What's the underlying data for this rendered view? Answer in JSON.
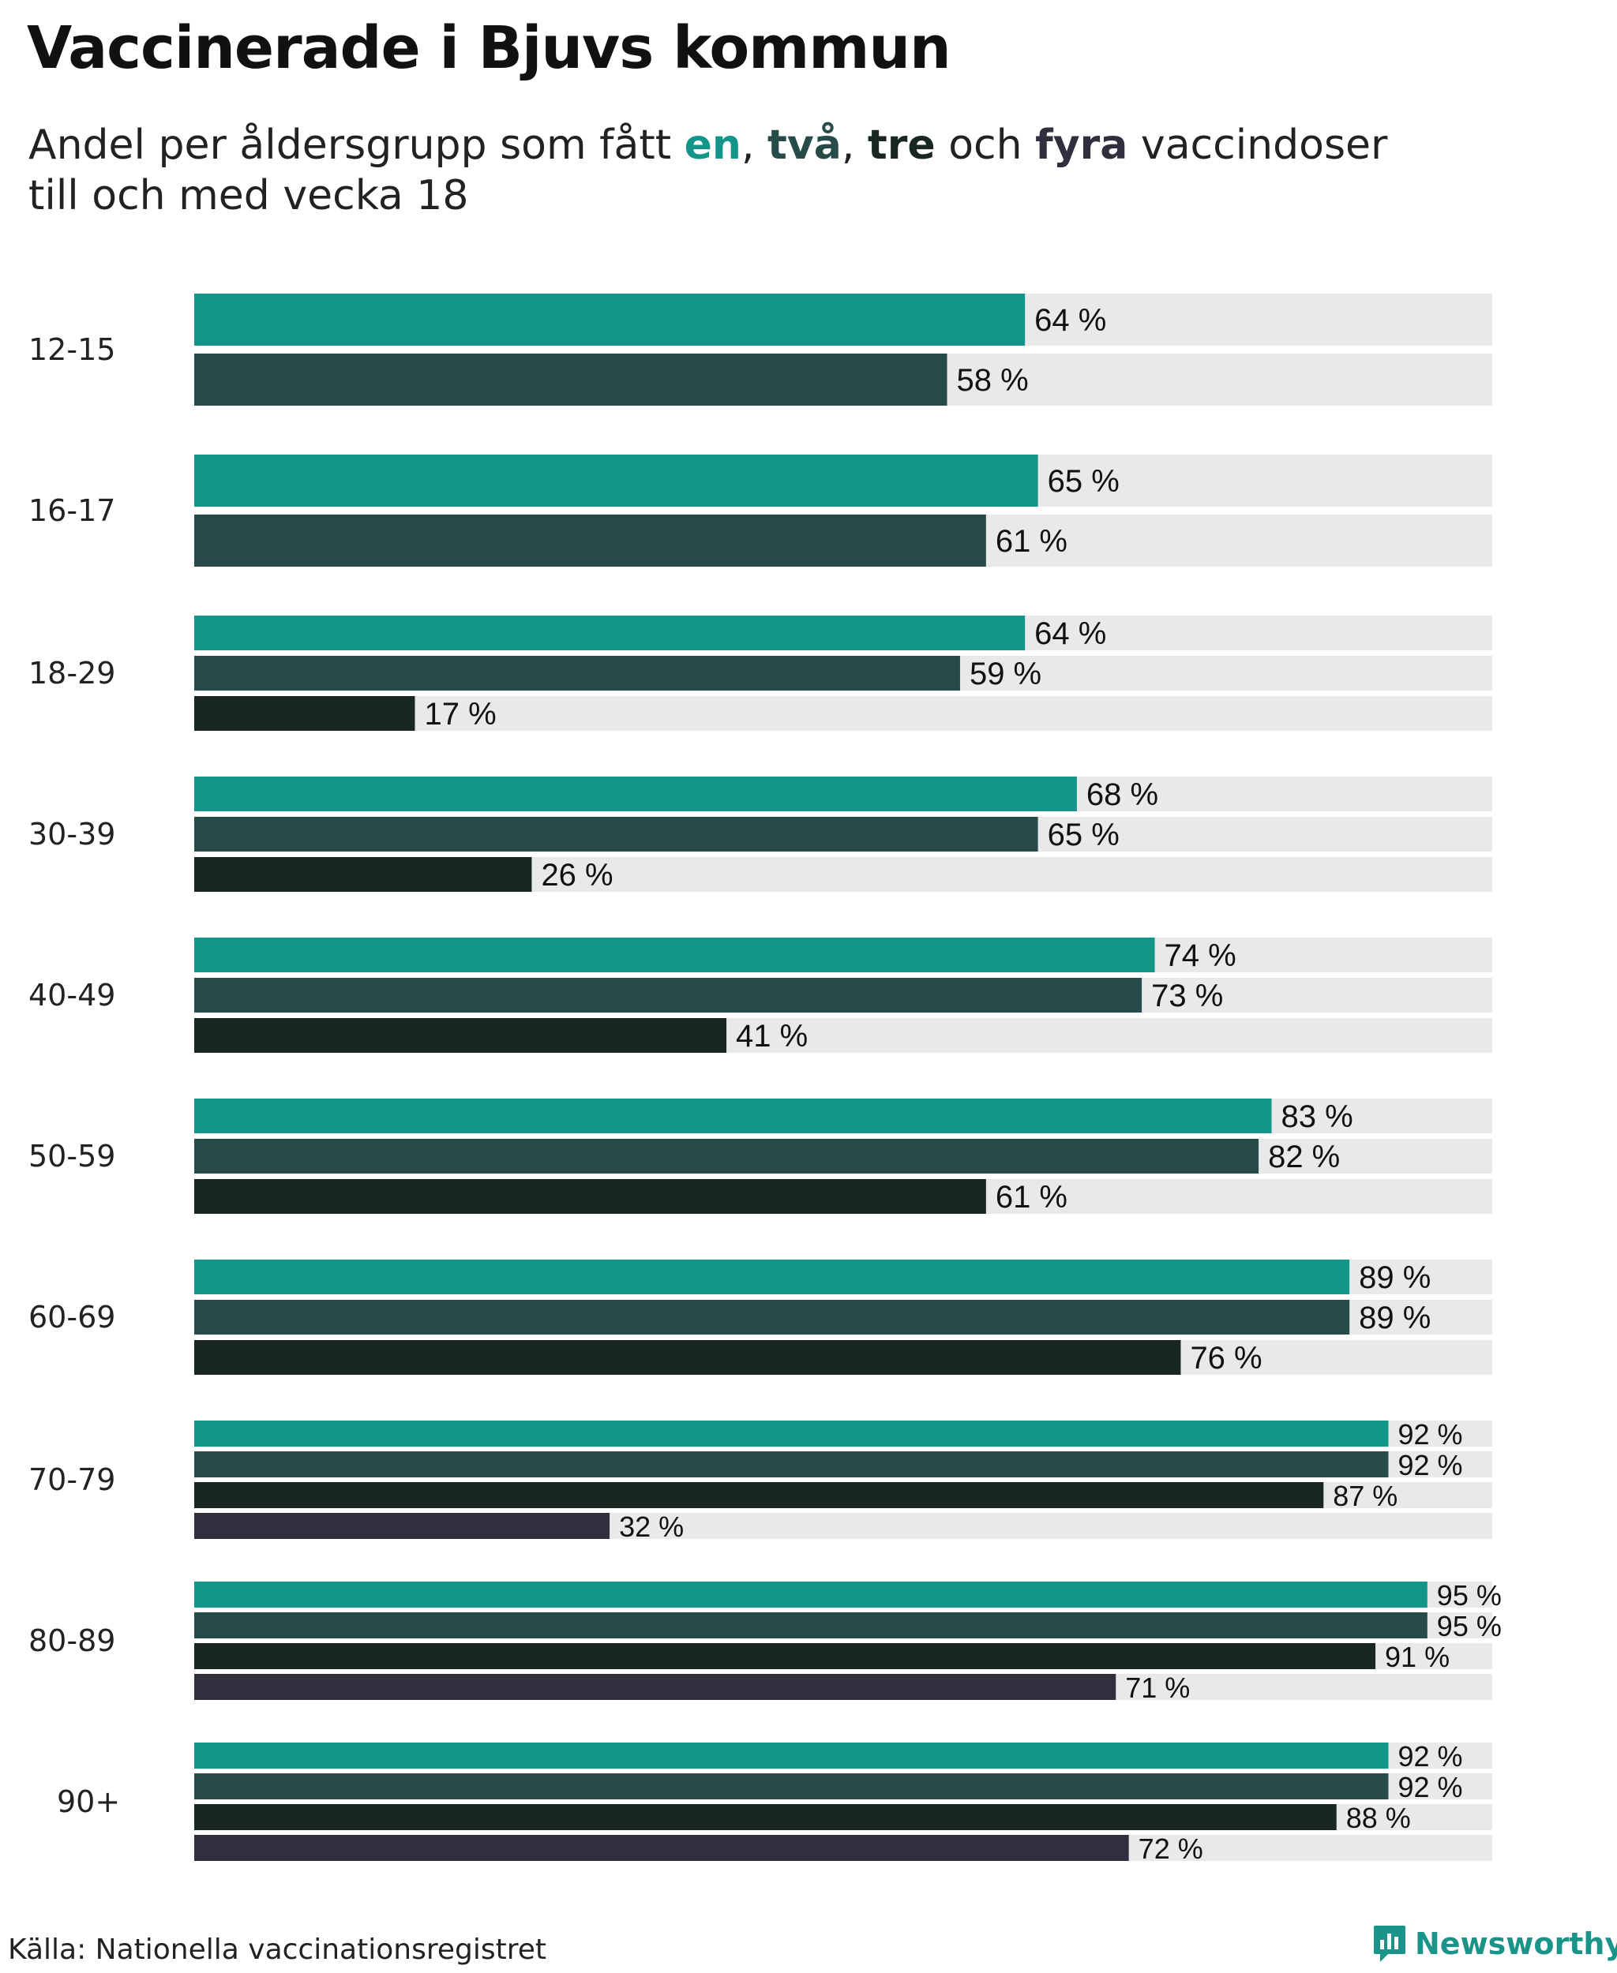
{
  "title": "Vaccinerade i Bjuvs kommun",
  "subtitle": {
    "prefix": "Andel per åldersgrupp som fått ",
    "dose1": "en",
    "sep1": ", ",
    "dose2": "två",
    "sep2": ", ",
    "dose3": "tre",
    "sep3": " och ",
    "dose4": "fyra",
    "suffix": " vaccindoser",
    "line2": "till och med vecka 18"
  },
  "colors": {
    "dose1": "#13958a",
    "dose2": "#264b49",
    "dose3": "#182624",
    "dose4": "#2f2f3d",
    "track": "#e9e9e9"
  },
  "chart_data": {
    "type": "bar",
    "orientation": "horizontal",
    "title": "Vaccinerade i Bjuvs kommun",
    "xlabel": "",
    "ylabel": "",
    "xlim": [
      0,
      100
    ],
    "value_suffix": " %",
    "categories": [
      "12-15",
      "16-17",
      "18-29",
      "30-39",
      "40-49",
      "50-59",
      "60-69",
      "70-79",
      "80-89",
      "90+"
    ],
    "series": [
      {
        "name": "en",
        "values": [
          64,
          65,
          64,
          68,
          74,
          83,
          89,
          92,
          95,
          92
        ]
      },
      {
        "name": "två",
        "values": [
          58,
          61,
          59,
          65,
          73,
          82,
          89,
          92,
          95,
          92
        ]
      },
      {
        "name": "tre",
        "values": [
          null,
          null,
          17,
          26,
          41,
          61,
          76,
          87,
          91,
          88
        ]
      },
      {
        "name": "fyra",
        "values": [
          null,
          null,
          null,
          null,
          null,
          null,
          null,
          32,
          71,
          72
        ]
      }
    ]
  },
  "source": "Källa: Nationella vaccinationsregistret",
  "brand": {
    "name": "Newsworthy",
    "icon": "newsworthy-logo-icon"
  }
}
